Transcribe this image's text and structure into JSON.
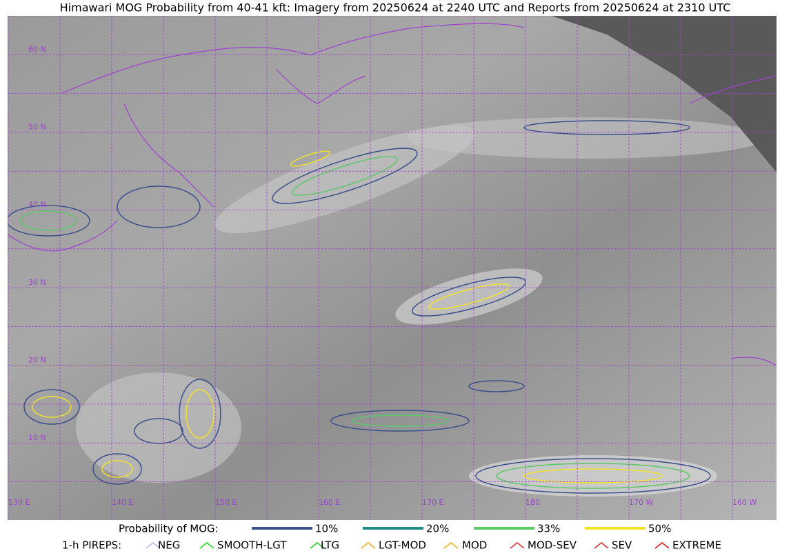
{
  "title": "Himawari MOG Probability from 40-41 kft: Imagery from 20250624 at 2240 UTC and Reports from 20250624 at 2310 UTC",
  "map": {
    "lat_labels": [
      "60 N",
      "50 N",
      "40 N",
      "30 N",
      "20 N",
      "10 N"
    ],
    "lon_labels": [
      "130 E",
      "140 E",
      "150 E",
      "160 E",
      "170 E",
      "180",
      "170 W",
      "160 W"
    ]
  },
  "legend": {
    "probability_title": "Probability of MOG:",
    "probability_items": [
      {
        "label": "10%",
        "color": "#3b4f8c"
      },
      {
        "label": "20%",
        "color": "#1f8c88"
      },
      {
        "label": "33%",
        "color": "#5cc86a"
      },
      {
        "label": "50%",
        "color": "#f2e32a"
      }
    ],
    "pireps_title": "1-h PIREPS:",
    "pireps_items": [
      {
        "label": "NEG",
        "color": "#b8b8f0"
      },
      {
        "label": "SMOOTH-LGT",
        "color": "#22dd22"
      },
      {
        "label": "LTG",
        "color": "#22cc22"
      },
      {
        "label": "LGT-MOD",
        "color": "#f0b020"
      },
      {
        "label": "MOD",
        "color": "#f0b020"
      },
      {
        "label": "MOD-SEV",
        "color": "#e03030"
      },
      {
        "label": "SEV",
        "color": "#e03030"
      },
      {
        "label": "EXTREME",
        "color": "#e01010"
      }
    ]
  }
}
